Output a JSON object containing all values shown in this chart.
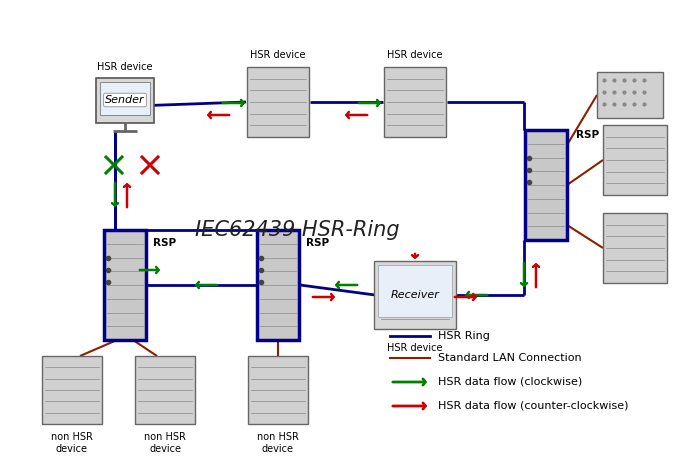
{
  "bg_color": "#ffffff",
  "title": "IEC62439 HSR-Ring",
  "hsr_blue": "#00008B",
  "lan_red": "#8B2000",
  "arrow_green": "#008000",
  "arrow_red": "#CC0000",
  "legend": [
    {
      "label": "HSR Ring",
      "color": "#00008B",
      "lw": 2.0,
      "arrow": false
    },
    {
      "label": "Standard LAN Connection",
      "color": "#8B2000",
      "lw": 1.5,
      "arrow": false
    },
    {
      "label": "HSR data flow (clockwise)",
      "color": "#008000",
      "lw": 2.0,
      "arrow": true
    },
    {
      "label": "HSR data flow (counter-clockwise)",
      "color": "#CC0000",
      "lw": 2.0,
      "arrow": true
    }
  ]
}
